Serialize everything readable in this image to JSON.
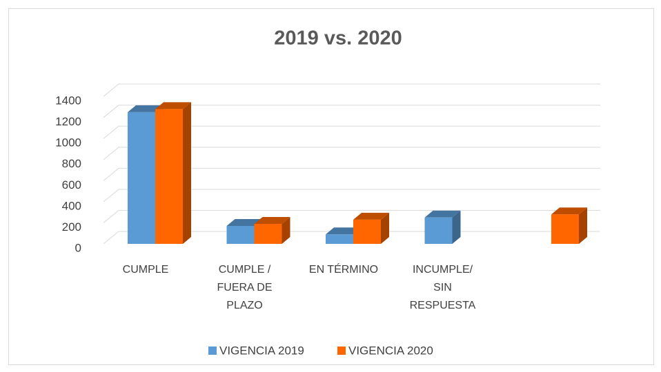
{
  "chart_data": {
    "type": "bar3d",
    "title": "2019 vs. 2020",
    "categories": [
      "CUMPLE",
      "CUMPLE / FUERA DE PLAZO",
      "EN TÉRMINO",
      "INCUMPLE/ SIN RESPUESTA",
      null
    ],
    "series": [
      {
        "name": "VIGENCIA 2019",
        "color": "#5b9bd5",
        "values": [
          1250,
          170,
          90,
          250,
          null
        ]
      },
      {
        "name": "VIGENCIA 2020",
        "color": "#ff6600",
        "values": [
          1280,
          190,
          230,
          null,
          280
        ]
      }
    ],
    "ylim": [
      0,
      1400
    ],
    "yticks": [
      0,
      200,
      400,
      600,
      800,
      1000,
      1200,
      1400
    ],
    "grid": true,
    "legend": "bottom"
  }
}
